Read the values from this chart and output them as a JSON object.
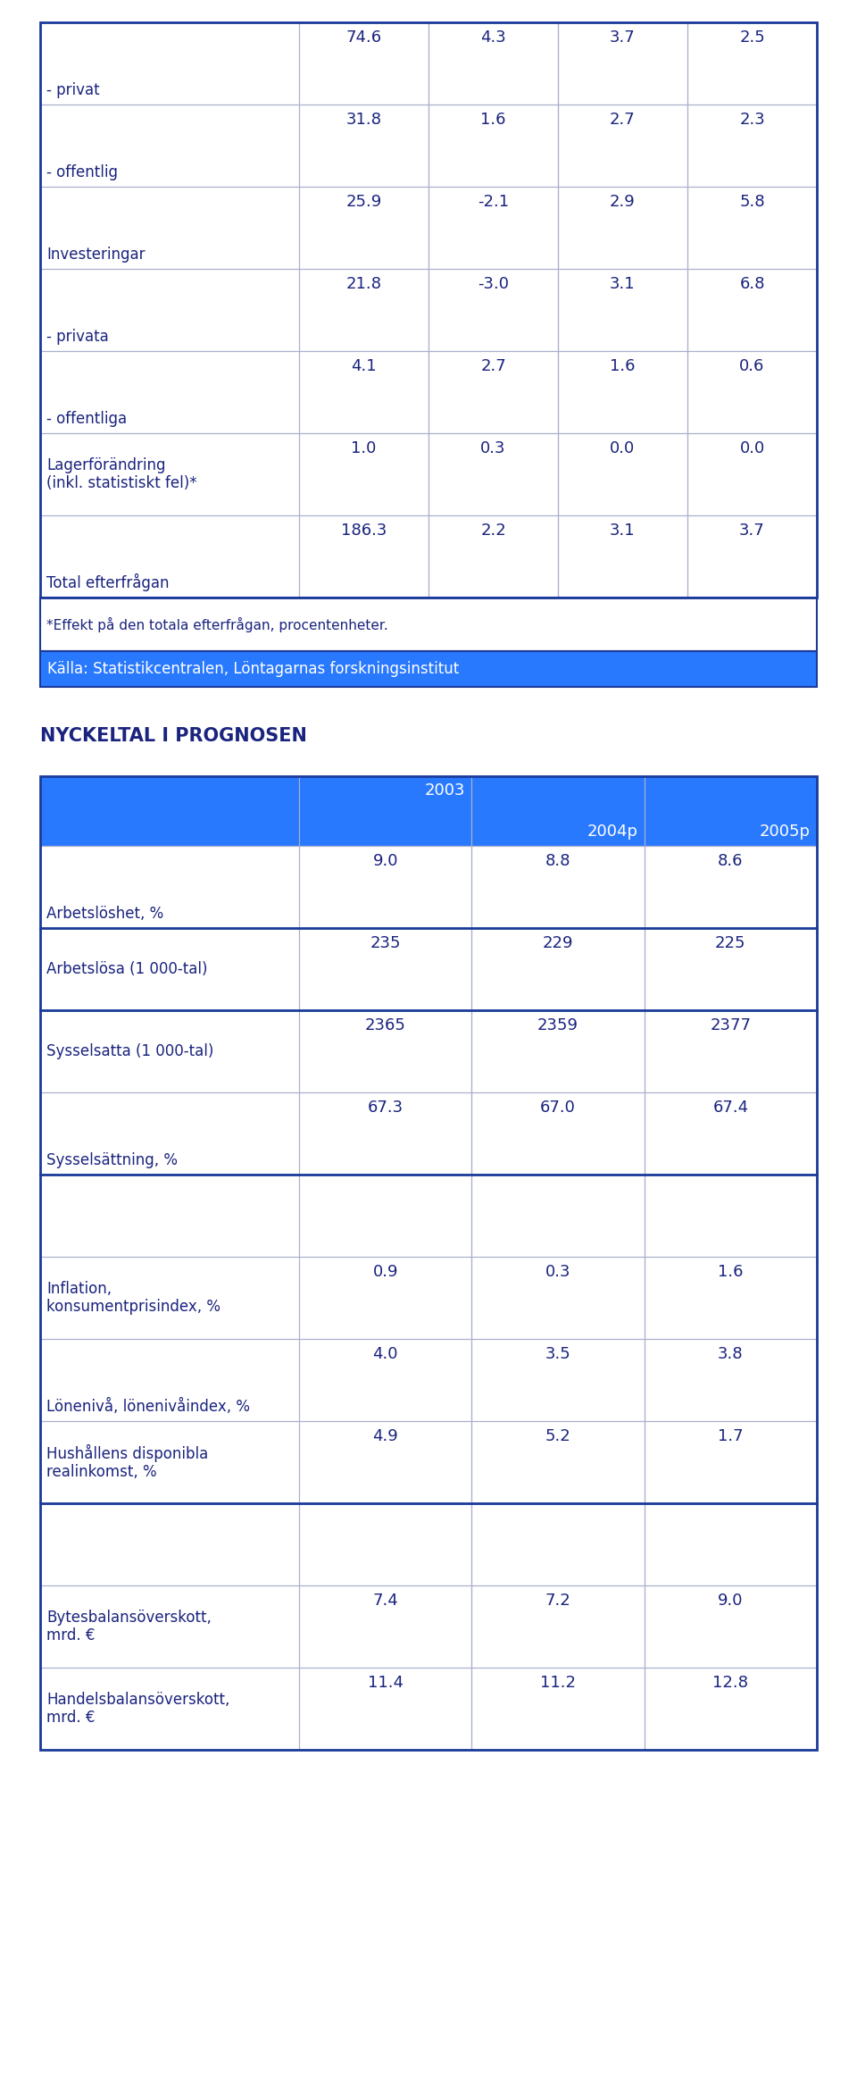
{
  "outer_blue": "#1a3a9a",
  "header_blue": "#2979FF",
  "text_blue": "#1a237e",
  "border_color": "#aab0cc",
  "source_label": "Källa: Statistikcentralen, Löntagarnas forskningsinstitut",
  "title2": "NYCKELTAL I PROGNOSEN",
  "table1_rows": [
    {
      "label": "- privat",
      "label_bottom": true,
      "vals": [
        "74.6",
        "4.3",
        "3.7",
        "2.5"
      ]
    },
    {
      "label": "- offentlig",
      "label_bottom": true,
      "vals": [
        "31.8",
        "1.6",
        "2.7",
        "2.3"
      ]
    },
    {
      "label": "Investeringar",
      "label_bottom": true,
      "vals": [
        "25.9",
        "-2.1",
        "2.9",
        "5.8"
      ]
    },
    {
      "label": "- privata",
      "label_bottom": true,
      "vals": [
        "21.8",
        "-3.0",
        "3.1",
        "6.8"
      ]
    },
    {
      "label": "- offentliga",
      "label_bottom": true,
      "vals": [
        "4.1",
        "2.7",
        "1.6",
        "0.6"
      ]
    },
    {
      "label": "Lagerförändring\n(inkl. statistiskt fel)*",
      "label_bottom": false,
      "vals": [
        "1.0",
        "0.3",
        "0.0",
        "0.0"
      ]
    },
    {
      "label": "Total efterfrågan",
      "label_bottom": true,
      "vals": [
        "186.3",
        "2.2",
        "3.1",
        "3.7"
      ]
    }
  ],
  "footnote": "*Effekt på den totala efterfrågan, procentenheter.",
  "table2_rows": [
    {
      "label": "Arbetslöshet, %",
      "label_bottom": true,
      "vals": [
        "9.0",
        "8.8",
        "8.6"
      ],
      "sep_above": false
    },
    {
      "label": "Arbetslösa (1 000-tal)",
      "label_bottom": false,
      "vals": [
        "235",
        "229",
        "225"
      ],
      "sep_above": true
    },
    {
      "label": "Sysselsatta (1 000-tal)",
      "label_bottom": false,
      "vals": [
        "2365",
        "2359",
        "2377"
      ],
      "sep_above": true
    },
    {
      "label": "Sysselsättning, %",
      "label_bottom": true,
      "vals": [
        "67.3",
        "67.0",
        "67.4"
      ],
      "sep_above": false
    },
    {
      "label": "",
      "label_bottom": false,
      "vals": [
        "",
        "",
        ""
      ],
      "sep_above": true
    },
    {
      "label": "Inflation,\nkonsumentprisindex, %",
      "label_bottom": false,
      "vals": [
        "0.9",
        "0.3",
        "1.6"
      ],
      "sep_above": false
    },
    {
      "label": "Lönenivå, lönenivåindex, %",
      "label_bottom": true,
      "vals": [
        "4.0",
        "3.5",
        "3.8"
      ],
      "sep_above": false
    },
    {
      "label": "Hushållens disponibla\nrealinkomst, %",
      "label_bottom": false,
      "vals": [
        "4.9",
        "5.2",
        "1.7"
      ],
      "sep_above": false
    },
    {
      "label": "",
      "label_bottom": false,
      "vals": [
        "",
        "",
        ""
      ],
      "sep_above": true
    },
    {
      "label": "Bytesbalansöverskott,\nmrd. €",
      "label_bottom": false,
      "vals": [
        "7.4",
        "7.2",
        "9.0"
      ],
      "sep_above": false
    },
    {
      "label": "Handelsbalansöverskott,\nmrd. €",
      "label_bottom": false,
      "vals": [
        "11.4",
        "11.2",
        "12.8"
      ],
      "sep_above": false
    }
  ]
}
